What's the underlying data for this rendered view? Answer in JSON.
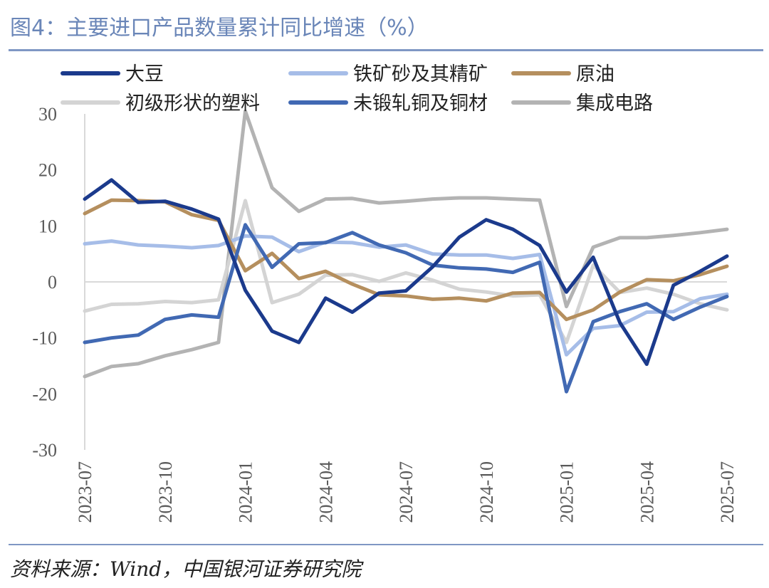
{
  "title": "图4：主要进口产品数量累计同比增速（%）",
  "source": "资料来源：Wind，中国银河证券研究院",
  "chart_data": {
    "type": "line",
    "x_tick_labels": [
      "2023-07",
      "2023-10",
      "2024-01",
      "2024-04",
      "2024-07",
      "2024-10",
      "2025-01",
      "2025-04",
      "2025-07"
    ],
    "x": [
      "2023-07",
      "2023-08",
      "2023-09",
      "2023-10",
      "2023-11",
      "2023-12",
      "2024-01",
      "2024-02",
      "2024-03",
      "2024-04",
      "2024-05",
      "2024-06",
      "2024-07",
      "2024-08",
      "2024-09",
      "2024-10",
      "2024-11",
      "2024-12",
      "2025-01",
      "2025-02",
      "2025-03",
      "2025-04",
      "2025-05",
      "2025-06",
      "2025-07"
    ],
    "yticks": [
      "30",
      "20",
      "10",
      "0",
      "-10",
      "-20",
      "-30"
    ],
    "ylim": [
      -30,
      30
    ],
    "grid": false,
    "legend_position": "top",
    "series": [
      {
        "name": "大豆",
        "color": "#1b3a8c",
        "values": [
          14.8,
          18.2,
          14.2,
          14.4,
          13.0,
          11.2,
          -1.5,
          -8.8,
          -10.8,
          -2.9,
          -5.4,
          -2.0,
          -1.6,
          2.7,
          8.0,
          11.1,
          9.4,
          6.5,
          -1.8,
          4.4,
          -7.3,
          -14.7,
          -0.6,
          1.9,
          4.6
        ]
      },
      {
        "name": "铁矿砂及其精矿",
        "color": "#a6bde8",
        "values": [
          6.8,
          7.3,
          6.6,
          6.4,
          6.1,
          6.5,
          8.2,
          8.0,
          5.4,
          7.1,
          7.0,
          6.2,
          6.6,
          5.0,
          4.8,
          4.8,
          4.2,
          4.9,
          -13.0,
          -8.3,
          -7.8,
          -5.4,
          -5.3,
          -3.0,
          -2.2
        ]
      },
      {
        "name": "原油",
        "color": "#b58f5e",
        "values": [
          12.2,
          14.6,
          14.5,
          14.3,
          12.0,
          11.0,
          2.0,
          5.1,
          0.6,
          1.9,
          -0.4,
          -2.3,
          -2.5,
          -3.1,
          -2.9,
          -3.4,
          -2.0,
          -1.9,
          -6.7,
          -5.0,
          -1.8,
          0.4,
          0.2,
          1.3,
          2.8
        ]
      },
      {
        "name": "初级形状的塑料",
        "color": "#d4d4d4",
        "values": [
          -5.2,
          -4.0,
          -3.9,
          -3.5,
          -3.7,
          -3.2,
          14.5,
          -3.7,
          -2.2,
          1.2,
          1.3,
          0.1,
          1.6,
          0.3,
          -1.3,
          -1.8,
          -2.5,
          -2.3,
          -10.8,
          3.0,
          -1.9,
          -1.1,
          -2.2,
          -3.9,
          -5.0
        ]
      },
      {
        "name": "未锻轧铜及铜材",
        "color": "#4169b3",
        "values": [
          -10.8,
          -10.0,
          -9.5,
          -6.7,
          -5.9,
          -6.3,
          10.2,
          2.6,
          6.8,
          7.0,
          8.8,
          6.6,
          5.2,
          3.0,
          2.5,
          2.3,
          1.7,
          3.5,
          -19.6,
          -7.1,
          -5.3,
          -3.9,
          -6.7,
          -4.5,
          -2.6
        ]
      },
      {
        "name": "集成电路",
        "color": "#b3b3b3",
        "values": [
          -16.9,
          -15.1,
          -14.6,
          -13.2,
          -12.1,
          -10.8,
          30.5,
          16.8,
          12.6,
          14.8,
          14.9,
          14.1,
          14.4,
          14.8,
          15.0,
          15.0,
          14.8,
          14.6,
          -4.4,
          6.2,
          7.9,
          7.9,
          8.3,
          8.8,
          9.4
        ]
      }
    ]
  }
}
